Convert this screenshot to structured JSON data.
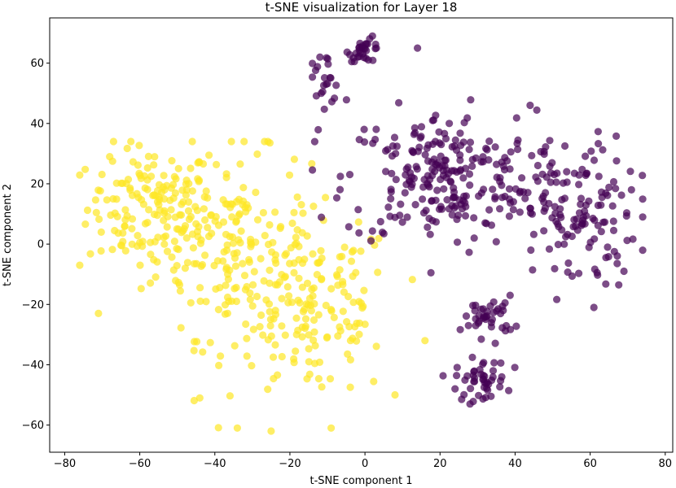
{
  "chart_data": {
    "type": "scatter",
    "title": "t-SNE visualization for Layer 18",
    "xlabel": "t-SNE component 1",
    "ylabel": "t-SNE component 2",
    "xlim": [
      -84,
      82
    ],
    "ylim": [
      -69,
      75
    ],
    "xticks": [
      -80,
      -60,
      -40,
      -20,
      0,
      20,
      40,
      60,
      80
    ],
    "yticks": [
      -60,
      -40,
      -20,
      0,
      20,
      40,
      60
    ],
    "xtick_labels": [
      "−80",
      "−60",
      "−40",
      "−20",
      "0",
      "20",
      "40",
      "60",
      "80"
    ],
    "ytick_labels": [
      "−60",
      "−40",
      "−20",
      "0",
      "20",
      "40",
      "60"
    ],
    "grid": false,
    "legend": "none",
    "series": [
      {
        "color": "#fde725",
        "alpha": 0.7,
        "approx_points": 480,
        "clusters": [
          {
            "cx": -57,
            "cy": 12,
            "sx": 10,
            "sy": 12,
            "n": 150
          },
          {
            "cx": -35,
            "cy": 0,
            "sx": 12,
            "sy": 18,
            "n": 170
          },
          {
            "cx": -14,
            "cy": -22,
            "sx": 13,
            "sy": 18,
            "n": 160
          }
        ],
        "bounds": {
          "x": [
            -76,
            16
          ],
          "y": [
            -62,
            34
          ]
        },
        "samples": [
          {
            "x": -68,
            "y": 29
          },
          {
            "x": -46,
            "y": 34
          },
          {
            "x": -76,
            "y": -7
          },
          {
            "x": -71,
            "y": -23
          },
          {
            "x": -34,
            "y": -61
          },
          {
            "x": -25,
            "y": -62
          },
          {
            "x": -9,
            "y": -61
          },
          {
            "x": 16,
            "y": -32
          },
          {
            "x": 8,
            "y": -50
          },
          {
            "x": -44,
            "y": -51
          }
        ]
      },
      {
        "color": "#440154",
        "alpha": 0.7,
        "approx_points": 520,
        "clusters": [
          {
            "cx": 0,
            "cy": 64,
            "sx": 2.5,
            "sy": 2,
            "n": 30
          },
          {
            "cx": -11,
            "cy": 55,
            "sx": 3,
            "sy": 5,
            "n": 22
          },
          {
            "cx": 20,
            "cy": 22,
            "sx": 15,
            "sy": 13,
            "n": 230
          },
          {
            "cx": 55,
            "cy": 10,
            "sx": 10,
            "sy": 15,
            "n": 140
          },
          {
            "cx": 33,
            "cy": -24,
            "sx": 4,
            "sy": 4,
            "n": 40
          },
          {
            "cx": 31,
            "cy": -45,
            "sx": 4,
            "sy": 4,
            "n": 45
          }
        ],
        "bounds": {
          "x": [
            -14,
            74
          ],
          "y": [
            -53,
            70
          ]
        },
        "samples": [
          {
            "x": 2,
            "y": 69
          },
          {
            "x": 14,
            "y": 65
          },
          {
            "x": -12,
            "y": 62
          },
          {
            "x": 74,
            "y": 9
          },
          {
            "x": 71,
            "y": 18
          },
          {
            "x": 69,
            "y": -9
          },
          {
            "x": 61,
            "y": -21
          },
          {
            "x": 28,
            "y": -53
          },
          {
            "x": 24,
            "y": -48
          },
          {
            "x": 44,
            "y": 46
          }
        ]
      }
    ]
  }
}
